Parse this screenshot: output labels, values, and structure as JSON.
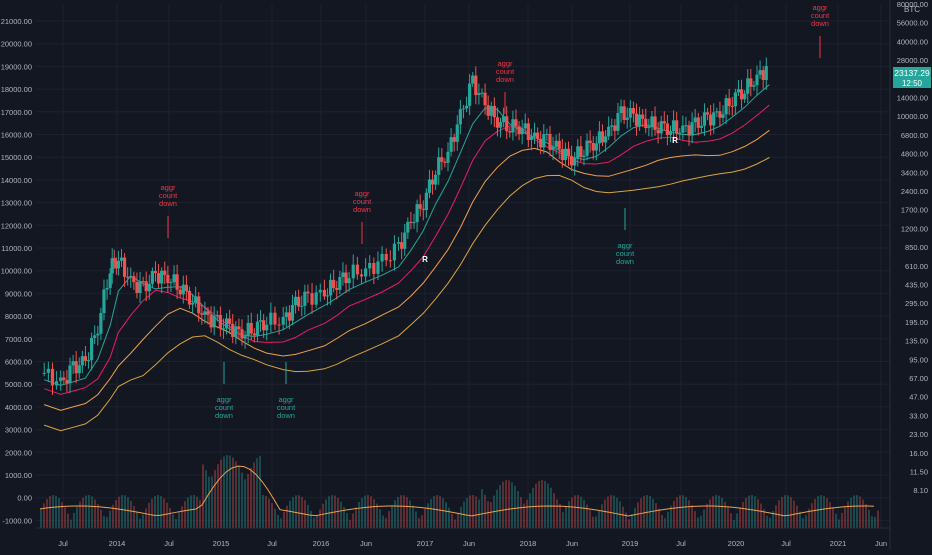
{
  "chart_data": {
    "type": "candlestick",
    "symbol_unit": "BTC",
    "price_badge": "23137.29",
    "time_badge": "12:50",
    "left_axis_ticks": [
      "21000.00",
      "20000.00",
      "19000.00",
      "18000.00",
      "17000.00",
      "16000.00",
      "15000.00",
      "14000.00",
      "13000.00",
      "12000.00",
      "11000.00",
      "10000.00",
      "9000.00",
      "8000.00",
      "7000.00",
      "6000.00",
      "5000.00",
      "4000.00",
      "3000.00",
      "2000.00",
      "1000.00",
      "0.00",
      "-1000.00"
    ],
    "right_axis_ticks": [
      "80000.00",
      "56000.00",
      "40000.00",
      "28000.00",
      "20000.00",
      "14000.00",
      "10000.00",
      "6800.00",
      "4800.00",
      "3400.00",
      "2400.00",
      "1700.00",
      "1200.00",
      "850.00",
      "610.00",
      "435.00",
      "295.00",
      "195.00",
      "135.00",
      "95.00",
      "67.00",
      "47.00",
      "33.00",
      "23.00",
      "16.00",
      "11.50",
      "8.10"
    ],
    "x_ticks": [
      "Jul",
      "2014",
      "Jul",
      "2015",
      "Jul",
      "2016",
      "Jun",
      "2017",
      "Jun",
      "2018",
      "Jun",
      "2019",
      "Jul",
      "2020",
      "Jul",
      "2021",
      "Jun"
    ],
    "annotations": [
      {
        "text": [
          "aggr",
          "count",
          "down"
        ],
        "color": "#f23645"
      },
      {
        "text": [
          "aggr",
          "count",
          "down"
        ],
        "color": "#f23645"
      },
      {
        "text": [
          "aggr",
          "count",
          "down"
        ],
        "color": "#f23645"
      },
      {
        "text": [
          "aggr",
          "count",
          "down"
        ],
        "color": "#f23645"
      },
      {
        "text": [
          "aggr",
          "count",
          "down"
        ],
        "color": "#26a69a"
      },
      {
        "text": [
          "aggr",
          "count",
          "down"
        ],
        "color": "#26a69a"
      },
      {
        "text": [
          "aggr",
          "count",
          "down"
        ],
        "color": "#26a69a"
      }
    ],
    "marker_label": "R",
    "price_path": [
      [
        0.01,
        5500
      ],
      [
        0.03,
        5000
      ],
      [
        0.045,
        5700
      ],
      [
        0.06,
        6000
      ],
      [
        0.075,
        7500
      ],
      [
        0.09,
        10200
      ],
      [
        0.1,
        10500
      ],
      [
        0.115,
        9500
      ],
      [
        0.13,
        9200
      ],
      [
        0.145,
        9800
      ],
      [
        0.16,
        9700
      ],
      [
        0.175,
        9300
      ],
      [
        0.19,
        8700
      ],
      [
        0.205,
        8000
      ],
      [
        0.22,
        7700
      ],
      [
        0.235,
        7500
      ],
      [
        0.25,
        7200
      ],
      [
        0.265,
        7500
      ],
      [
        0.28,
        7800
      ],
      [
        0.3,
        7800
      ],
      [
        0.315,
        8500
      ],
      [
        0.33,
        8800
      ],
      [
        0.35,
        9000
      ],
      [
        0.365,
        9500
      ],
      [
        0.38,
        9900
      ],
      [
        0.4,
        10000
      ],
      [
        0.42,
        10400
      ],
      [
        0.44,
        11000
      ],
      [
        0.455,
        12200
      ],
      [
        0.47,
        13000
      ],
      [
        0.485,
        14500
      ],
      [
        0.5,
        15200
      ],
      [
        0.515,
        16800
      ],
      [
        0.53,
        18300
      ],
      [
        0.545,
        17300
      ],
      [
        0.56,
        16600
      ],
      [
        0.575,
        16400
      ],
      [
        0.59,
        16300
      ],
      [
        0.605,
        15800
      ],
      [
        0.62,
        15700
      ],
      [
        0.635,
        15300
      ],
      [
        0.65,
        14900
      ],
      [
        0.665,
        15400
      ],
      [
        0.68,
        15700
      ],
      [
        0.695,
        16100
      ],
      [
        0.71,
        16900
      ],
      [
        0.725,
        16800
      ],
      [
        0.74,
        16500
      ],
      [
        0.755,
        16400
      ],
      [
        0.77,
        16300
      ],
      [
        0.785,
        16200
      ],
      [
        0.8,
        16400
      ],
      [
        0.815,
        16700
      ],
      [
        0.83,
        16900
      ],
      [
        0.845,
        17600
      ],
      [
        0.86,
        18000
      ],
      [
        0.875,
        18500
      ],
      [
        0.89,
        19000
      ]
    ],
    "ma_lines": [
      {
        "color": "#26a69a"
      },
      {
        "color": "#e91e63"
      },
      {
        "color": "#f0a04b"
      },
      {
        "color": "#d9a441"
      }
    ]
  }
}
